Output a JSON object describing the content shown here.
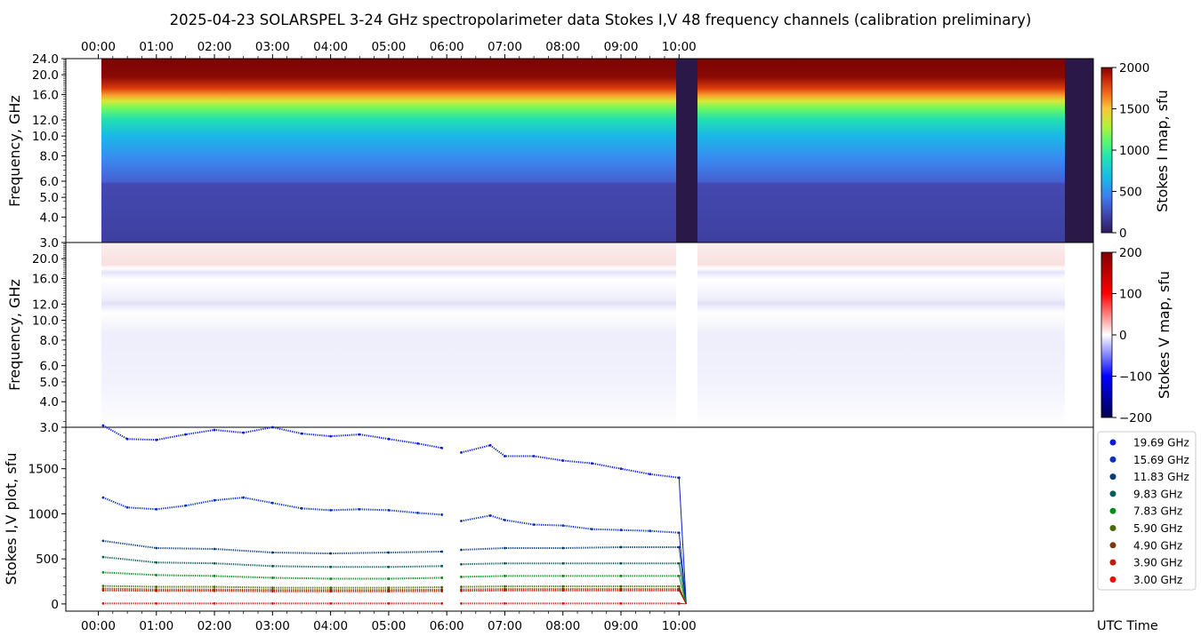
{
  "title": "2025-04-23  SOLARSPEL  3-24 GHz spectropolarimeter data   Stokes I,V   48 frequency channels   (calibration preliminary)",
  "time_ticks": [
    "00:00",
    "01:00",
    "02:00",
    "03:00",
    "04:00",
    "05:00",
    "06:00",
    "07:00",
    "08:00",
    "09:00",
    "10:00"
  ],
  "x_axis_label": "UTC Time",
  "chart_data": [
    {
      "type": "heatmap",
      "panel": "stokes_i_map",
      "ylabel": "Frequency, GHz",
      "y_scale": "log",
      "ylim": [
        3.0,
        24.0
      ],
      "y_ticks": [
        "3.0",
        "4.0",
        "5.0",
        "6.0",
        "8.0",
        "10.0",
        "12.0",
        "16.0",
        "20.0",
        "24.0"
      ],
      "colorbar_label": "Stokes I map, sfu",
      "colorbar_ticks": [
        "0",
        "500",
        "1000",
        "1500",
        "2000"
      ],
      "clim": [
        0,
        2000
      ],
      "colormap": "turbo",
      "data_start": "00:03",
      "data_gap": [
        "06:00",
        "06:13"
      ],
      "data_end": "10:03"
    },
    {
      "type": "heatmap",
      "panel": "stokes_v_map",
      "ylabel": "Frequency, GHz",
      "y_scale": "log",
      "ylim": [
        3.0,
        24.0
      ],
      "y_ticks": [
        "3.0",
        "4.0",
        "5.0",
        "6.0",
        "8.0",
        "10.0",
        "12.0",
        "16.0",
        "20.0"
      ],
      "colorbar_label": "Stokes V map, sfu",
      "colorbar_ticks": [
        "−200",
        "−100",
        "0",
        "100",
        "200"
      ],
      "clim": [
        -200,
        200
      ],
      "colormap": "seismic"
    },
    {
      "type": "scatter",
      "panel": "stokes_iv_plot",
      "ylabel": "Stokes I,V plot, sfu",
      "ylim": [
        -80,
        1960
      ],
      "y_ticks": [
        "0",
        "500",
        "1000",
        "1500"
      ],
      "legend_position": "right",
      "series": [
        {
          "name": "19.69 GHz",
          "color": "#0a1ad8",
          "x": [
            "00:05",
            "00:30",
            "01:00",
            "01:30",
            "02:00",
            "02:30",
            "03:00",
            "03:30",
            "04:00",
            "04:30",
            "05:00",
            "05:30",
            "05:55",
            "06:15",
            "06:45",
            "07:00",
            "07:30",
            "08:00",
            "08:30",
            "09:00",
            "09:30",
            "10:00"
          ],
          "values": [
            1980,
            1830,
            1820,
            1880,
            1930,
            1900,
            1960,
            1890,
            1860,
            1880,
            1830,
            1780,
            1730,
            1680,
            1760,
            1640,
            1640,
            1590,
            1560,
            1500,
            1440,
            1400
          ]
        },
        {
          "name": "15.69 GHz",
          "color": "#0630b8",
          "x": [
            "00:05",
            "00:30",
            "01:00",
            "01:30",
            "02:00",
            "02:30",
            "03:00",
            "03:30",
            "04:00",
            "04:30",
            "05:00",
            "05:30",
            "05:55",
            "06:15",
            "06:45",
            "07:00",
            "07:30",
            "08:00",
            "08:30",
            "09:00",
            "09:30",
            "10:00"
          ],
          "values": [
            1180,
            1070,
            1050,
            1090,
            1150,
            1180,
            1120,
            1060,
            1040,
            1050,
            1040,
            1010,
            990,
            920,
            980,
            930,
            880,
            870,
            830,
            820,
            810,
            790
          ]
        },
        {
          "name": "11.83 GHz",
          "color": "#0a3e78",
          "x": [
            "00:05",
            "01:00",
            "02:00",
            "03:00",
            "04:00",
            "05:00",
            "05:55",
            "06:15",
            "07:00",
            "08:00",
            "09:00",
            "10:00"
          ],
          "values": [
            700,
            620,
            610,
            570,
            560,
            570,
            580,
            600,
            620,
            620,
            630,
            630
          ]
        },
        {
          "name": "9.83 GHz",
          "color": "#0a5a5a",
          "x": [
            "00:05",
            "01:00",
            "02:00",
            "03:00",
            "04:00",
            "05:00",
            "05:55",
            "06:15",
            "07:00",
            "08:00",
            "09:00",
            "10:00"
          ],
          "values": [
            520,
            460,
            450,
            420,
            410,
            410,
            420,
            440,
            450,
            450,
            450,
            450
          ]
        },
        {
          "name": "7.83 GHz",
          "color": "#0a8a1a",
          "x": [
            "00:05",
            "01:00",
            "02:00",
            "03:00",
            "04:00",
            "05:00",
            "05:55",
            "06:15",
            "07:00",
            "08:00",
            "09:00",
            "10:00"
          ],
          "values": [
            350,
            320,
            310,
            290,
            280,
            280,
            290,
            300,
            310,
            310,
            310,
            310
          ]
        },
        {
          "name": "5.90 GHz",
          "color": "#4a6a0a",
          "x": [
            "00:05",
            "01:00",
            "02:00",
            "03:00",
            "04:00",
            "05:00",
            "05:55",
            "06:15",
            "07:00",
            "08:00",
            "09:00",
            "10:00"
          ],
          "values": [
            200,
            190,
            190,
            180,
            180,
            180,
            185,
            190,
            195,
            195,
            195,
            195
          ]
        },
        {
          "name": "4.90 GHz",
          "color": "#7a3a0a",
          "x": [
            "00:05",
            "01:00",
            "02:00",
            "03:00",
            "04:00",
            "05:00",
            "05:55",
            "06:15",
            "07:00",
            "08:00",
            "09:00",
            "10:00"
          ],
          "values": [
            170,
            160,
            160,
            155,
            155,
            155,
            158,
            160,
            165,
            165,
            165,
            165
          ]
        },
        {
          "name": "3.90 GHz",
          "color": "#c01a0a",
          "x": [
            "00:05",
            "01:00",
            "02:00",
            "03:00",
            "04:00",
            "05:00",
            "05:55",
            "06:15",
            "07:00",
            "08:00",
            "09:00",
            "10:00"
          ],
          "values": [
            150,
            145,
            145,
            140,
            140,
            140,
            142,
            145,
            150,
            150,
            150,
            150
          ]
        },
        {
          "name": "3.00 GHz",
          "color": "#ee0a0a",
          "x": [
            "00:05",
            "01:00",
            "02:00",
            "03:00",
            "04:00",
            "05:00",
            "05:55",
            "06:15",
            "07:00",
            "08:00",
            "09:00",
            "10:00"
          ],
          "values": [
            5,
            5,
            5,
            5,
            5,
            5,
            5,
            5,
            5,
            5,
            5,
            5
          ]
        }
      ]
    }
  ]
}
